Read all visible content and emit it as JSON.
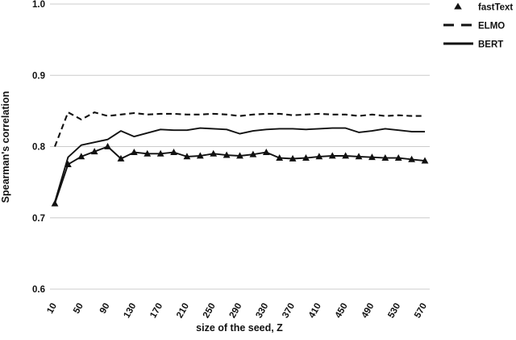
{
  "chart_data": {
    "type": "line",
    "title": "",
    "xlabel": "size of the seed, Z",
    "ylabel": "Spearman's correlation",
    "xlim": [
      0,
      580
    ],
    "ylim": [
      0.6,
      1.0
    ],
    "grid": "horizontal-only",
    "legend_position": "top-right-outside",
    "x_ticks": [
      10,
      50,
      90,
      130,
      170,
      210,
      250,
      290,
      330,
      370,
      410,
      450,
      490,
      530,
      570
    ],
    "y_ticks": [
      1.0,
      0.9,
      0.8,
      0.7,
      0.6
    ],
    "x": [
      10,
      30,
      50,
      70,
      90,
      110,
      130,
      150,
      170,
      190,
      210,
      230,
      250,
      270,
      290,
      310,
      330,
      350,
      370,
      390,
      410,
      430,
      450,
      470,
      490,
      510,
      530,
      550,
      570
    ],
    "series": [
      {
        "name": "fastText",
        "line_style": "solid",
        "marker": "triangle",
        "color": "#111111",
        "values": [
          0.72,
          0.775,
          0.786,
          0.793,
          0.8,
          0.783,
          0.792,
          0.79,
          0.79,
          0.792,
          0.786,
          0.787,
          0.79,
          0.788,
          0.787,
          0.789,
          0.792,
          0.784,
          0.783,
          0.784,
          0.786,
          0.787,
          0.787,
          0.786,
          0.785,
          0.784,
          0.784,
          0.782,
          0.78
        ]
      },
      {
        "name": "ELMO",
        "line_style": "dashed",
        "marker": "none",
        "color": "#111111",
        "values": [
          0.8,
          0.848,
          0.838,
          0.848,
          0.843,
          0.845,
          0.847,
          0.845,
          0.846,
          0.846,
          0.845,
          0.845,
          0.846,
          0.845,
          0.843,
          0.845,
          0.846,
          0.846,
          0.844,
          0.845,
          0.846,
          0.845,
          0.845,
          0.843,
          0.845,
          0.843,
          0.844,
          0.843,
          0.843
        ]
      },
      {
        "name": "BERT",
        "line_style": "solid",
        "marker": "none",
        "color": "#111111",
        "values": [
          0.722,
          0.785,
          0.802,
          0.806,
          0.81,
          0.822,
          0.814,
          0.819,
          0.824,
          0.823,
          0.823,
          0.826,
          0.825,
          0.824,
          0.818,
          0.822,
          0.824,
          0.825,
          0.825,
          0.824,
          0.825,
          0.826,
          0.826,
          0.82,
          0.822,
          0.825,
          0.823,
          0.821,
          0.821
        ]
      }
    ],
    "colors": {
      "line": "#111111",
      "grid": "#cccccc",
      "text": "#111111",
      "background": "#ffffff"
    }
  }
}
